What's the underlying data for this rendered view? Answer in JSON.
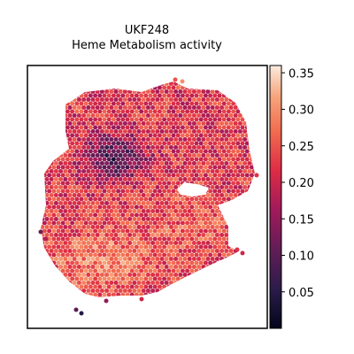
{
  "chart_data": {
    "type": "heatmap",
    "title_line1": "UKF248",
    "title_line2": "Heme Metabolism activity",
    "xlabel": "",
    "ylabel": "",
    "colorbar": {
      "ticks": [
        0.05,
        0.1,
        0.15,
        0.2,
        0.25,
        0.3,
        0.35
      ],
      "tick_labels": [
        "0.05",
        "0.10",
        "0.15",
        "0.20",
        "0.25",
        "0.30",
        "0.35"
      ],
      "vmin": 0.0,
      "vmax": 0.36,
      "colormap": "rocket"
    },
    "regions": [
      {
        "name": "upper tissue",
        "mean_value": 0.22
      },
      {
        "name": "dark upper-left patch",
        "mean_value": 0.08
      },
      {
        "name": "lower-left bright area",
        "mean_value": 0.29
      },
      {
        "name": "lower-right area",
        "mean_value": 0.26
      }
    ]
  }
}
